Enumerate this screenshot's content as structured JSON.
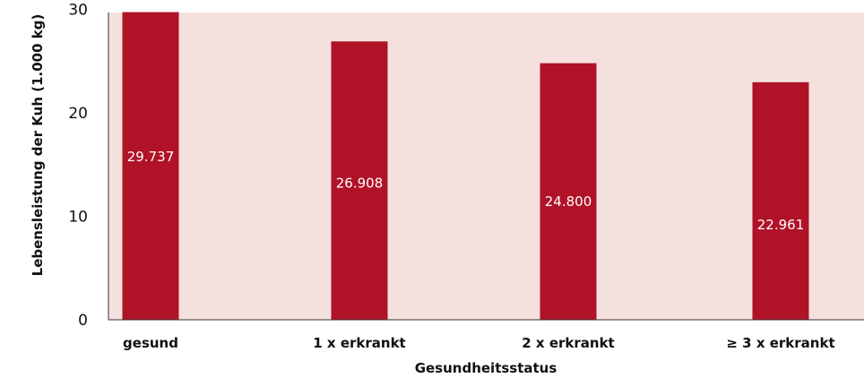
{
  "chart_data": {
    "type": "bar",
    "categories": [
      "gesund",
      "1 x erkrankt",
      "2 x erkrankt",
      "≥ 3 x erkrankt"
    ],
    "values": [
      29.737,
      26.908,
      24.8,
      22.961
    ],
    "data_labels": [
      "29.737",
      "26.908",
      "24.800",
      "22.961"
    ],
    "xlabel": "Gesundheitsstatus",
    "ylabel": "Lebensleistung der Kuh (1.000 kg)",
    "ylim": [
      0,
      30
    ],
    "yticks": [
      0,
      10,
      20,
      30
    ],
    "ytick_labels": [
      "0",
      "10",
      "20",
      "30"
    ],
    "grid": false,
    "legend": "none",
    "colors": {
      "bar": "#b01228",
      "plot_background": "#f4e1dd",
      "axis": "#333333"
    }
  }
}
